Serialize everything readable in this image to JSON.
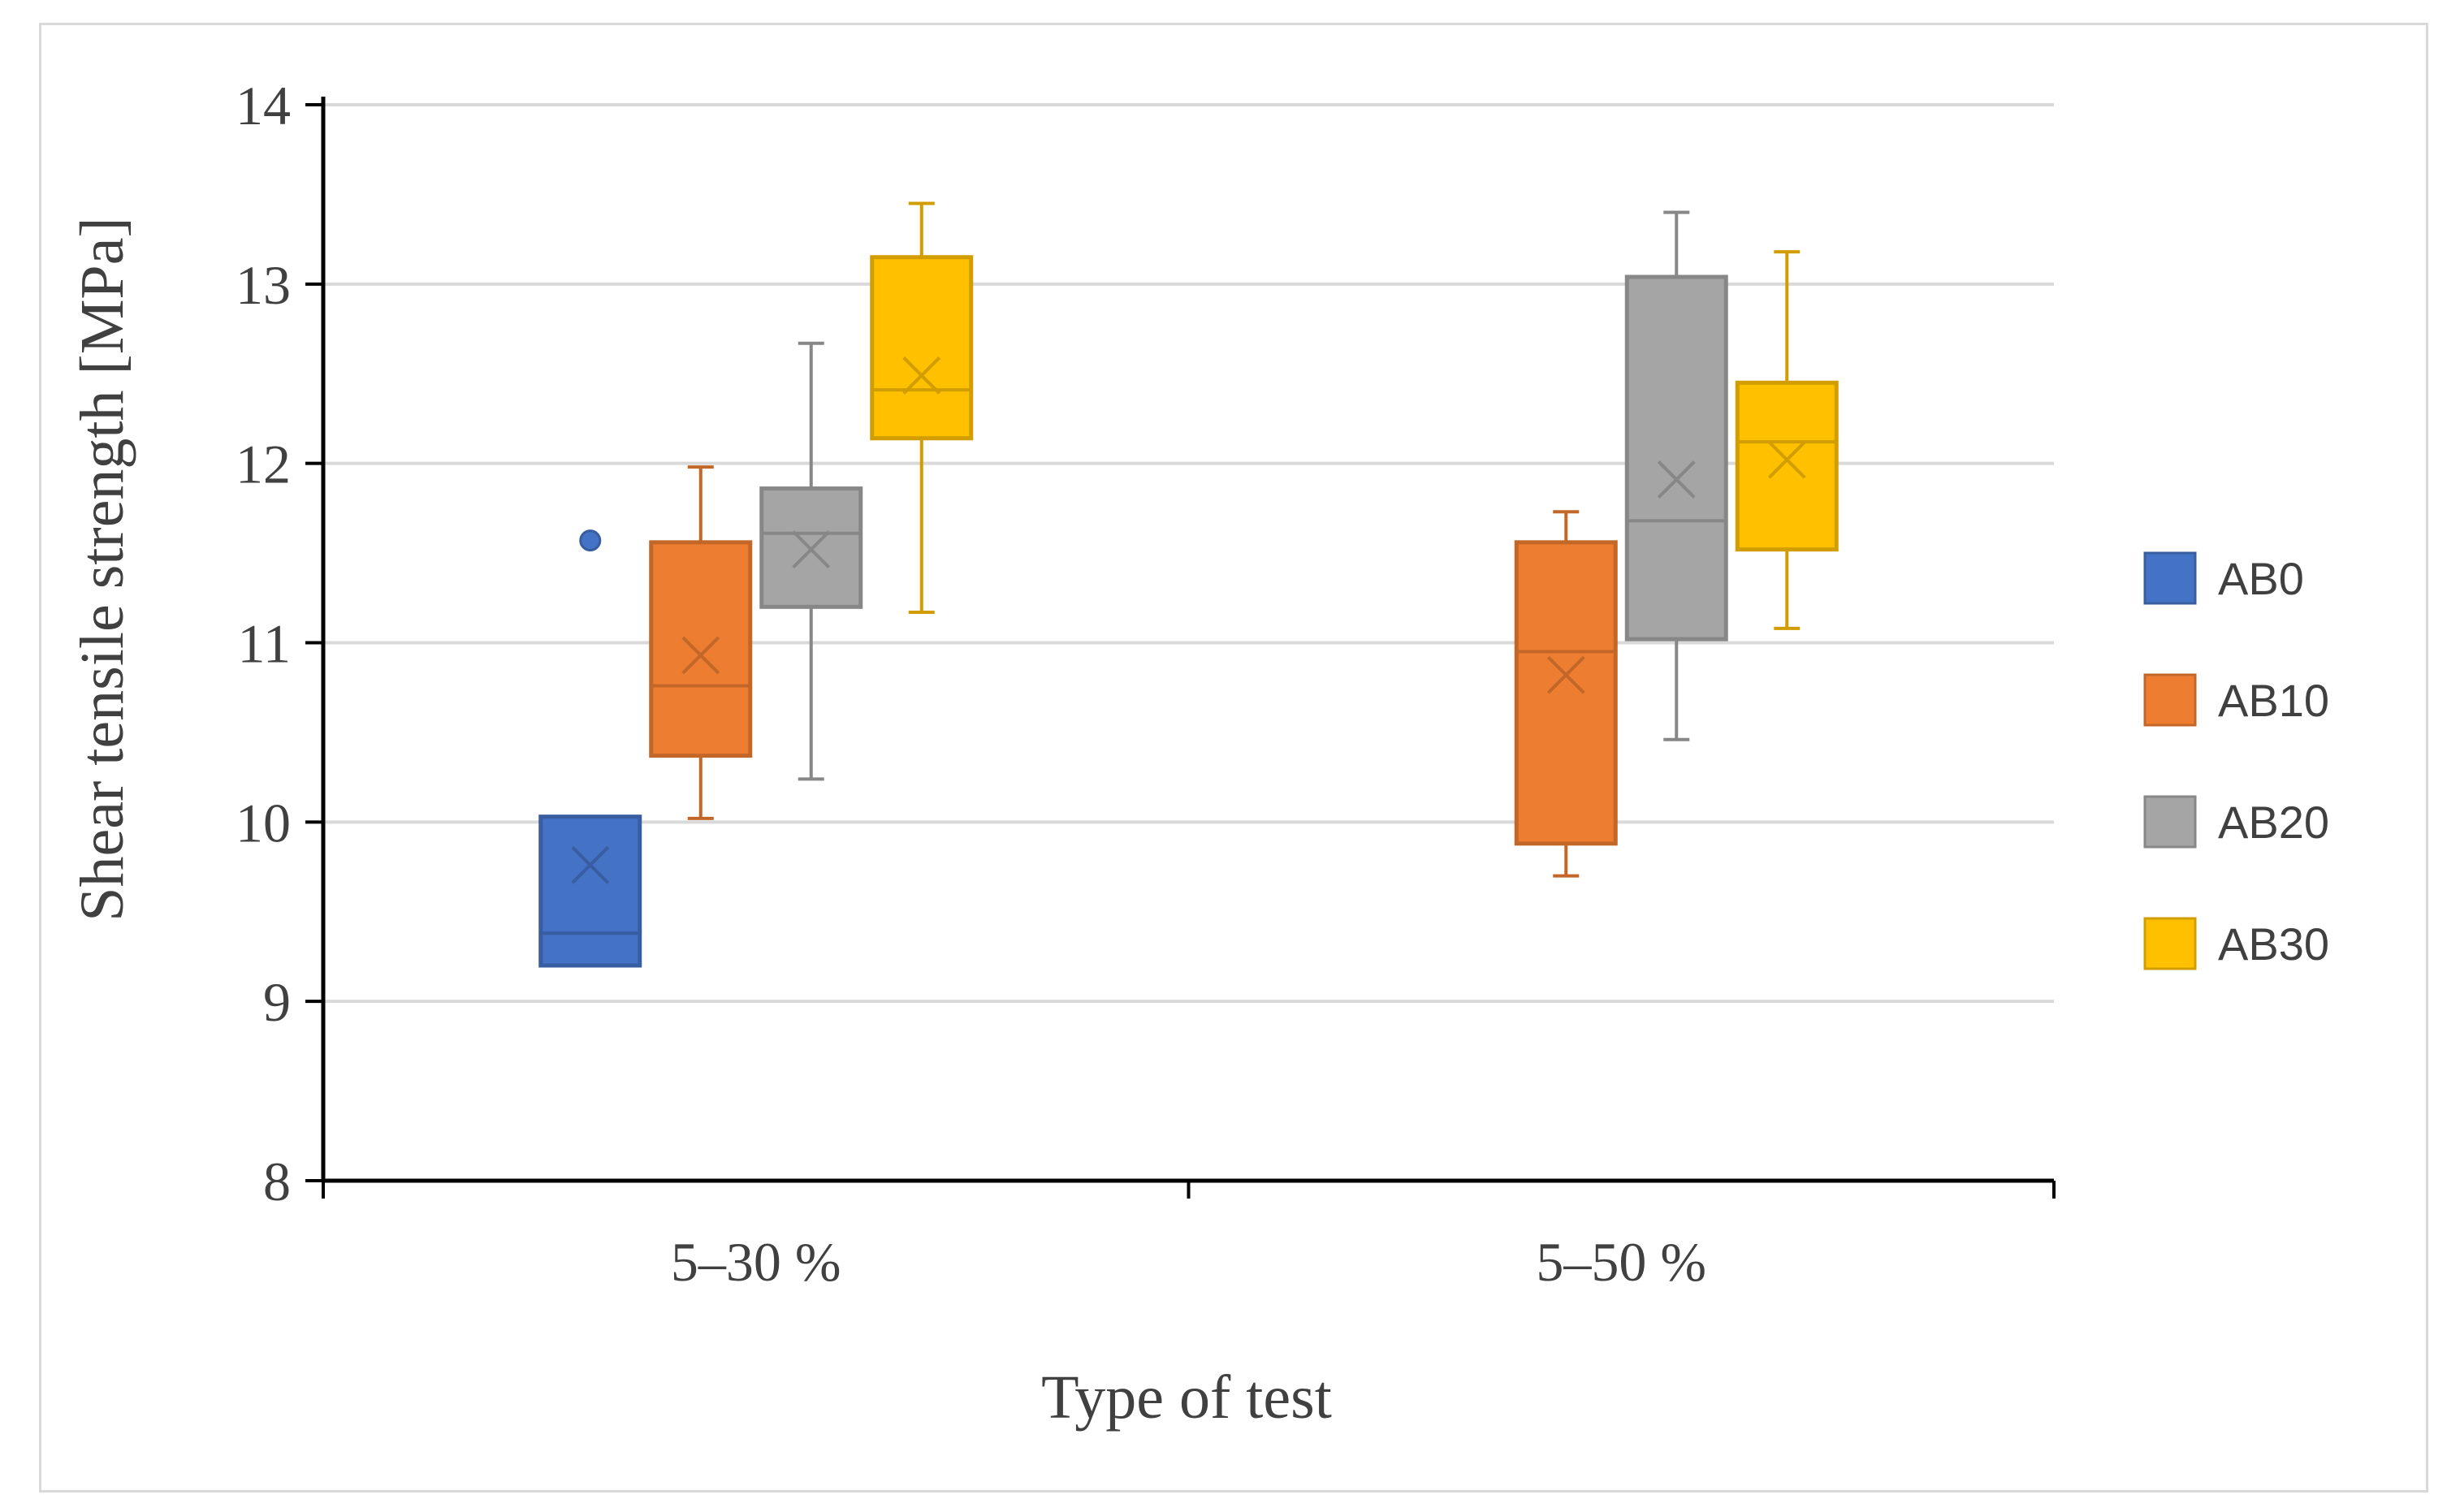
{
  "chart_data": {
    "type": "boxplot",
    "title": "",
    "xlabel": "Type of test",
    "ylabel": "Shear tensile strength [MPa]",
    "ylim": [
      8,
      14
    ],
    "yticks": [
      "8",
      "9",
      "10",
      "11",
      "12",
      "13",
      "14"
    ],
    "grid": true,
    "legend_position": "right",
    "categories": [
      "5–30 %",
      "5–50 %"
    ],
    "series": [
      {
        "name": "AB0",
        "color": "#4472c4",
        "boxes": [
          {
            "category": "5–30 %",
            "min": 9.2,
            "q1": 9.2,
            "median": 9.38,
            "q3": 10.03,
            "max": 10.03,
            "mean": 9.76,
            "outliers": [
              11.57
            ]
          },
          null
        ]
      },
      {
        "name": "AB10",
        "color": "#ed7d31",
        "boxes": [
          {
            "category": "5–30 %",
            "min": 10.02,
            "q1": 10.37,
            "median": 10.76,
            "q3": 11.56,
            "max": 11.98,
            "mean": 10.93,
            "outliers": []
          },
          {
            "category": "5–50 %",
            "min": 9.7,
            "q1": 9.88,
            "median": 10.95,
            "q3": 11.56,
            "max": 11.73,
            "mean": 10.82,
            "outliers": []
          }
        ]
      },
      {
        "name": "AB20",
        "color": "#a5a5a5",
        "boxes": [
          {
            "category": "5–30 %",
            "min": 10.24,
            "q1": 11.2,
            "median": 11.61,
            "q3": 11.86,
            "max": 12.67,
            "mean": 11.52,
            "outliers": []
          },
          {
            "category": "5–50 %",
            "min": 10.46,
            "q1": 11.02,
            "median": 11.68,
            "q3": 13.04,
            "max": 13.4,
            "mean": 11.91,
            "outliers": []
          }
        ]
      },
      {
        "name": "AB30",
        "color": "#ffc000",
        "boxes": [
          {
            "category": "5–30 %",
            "min": 11.17,
            "q1": 12.14,
            "median": 12.41,
            "q3": 13.15,
            "max": 13.45,
            "mean": 12.49,
            "outliers": []
          },
          {
            "category": "5–50 %",
            "min": 11.08,
            "q1": 11.52,
            "median": 12.12,
            "q3": 12.45,
            "max": 13.18,
            "mean": 12.02,
            "outliers": []
          }
        ]
      }
    ]
  }
}
